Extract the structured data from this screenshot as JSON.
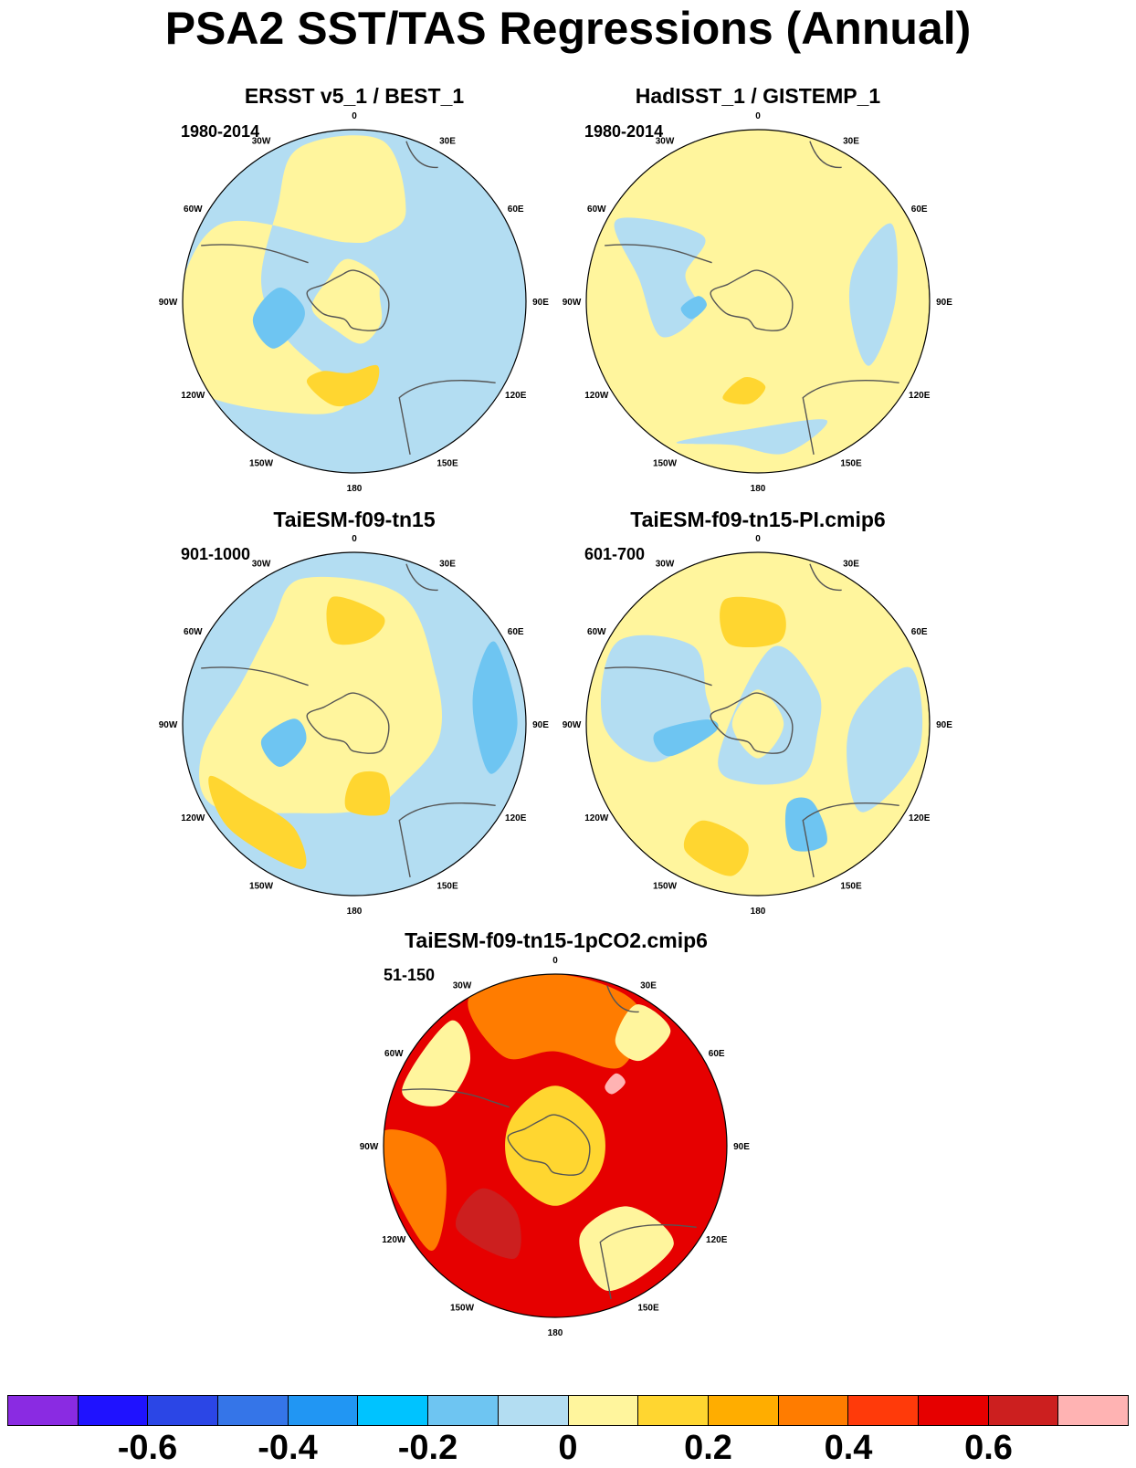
{
  "title": "PSA2 SST/TAS Regressions (Annual)",
  "panels": [
    {
      "title": "ERSST v5_1 / BEST_1",
      "period": "1980-2014",
      "scheme": "obs1"
    },
    {
      "title": "HadISST_1 / GISTEMP_1",
      "period": "1980-2014",
      "scheme": "obs2"
    },
    {
      "title": "TaiESM-f09-tn15",
      "period": "901-1000",
      "scheme": "model1"
    },
    {
      "title": "TaiESM-f09-tn15-PI.cmip6",
      "period": "601-700",
      "scheme": "model2"
    },
    {
      "title": "TaiESM-f09-tn15-1pCO2.cmip6",
      "period": "51-150",
      "scheme": "warm"
    }
  ],
  "longitude_labels": [
    "0",
    "30E",
    "60E",
    "90E",
    "120E",
    "150E",
    "180",
    "150W",
    "120W",
    "90W",
    "60W",
    "30W"
  ],
  "colorbar": {
    "colors": [
      "#8a2be2",
      "#1f12ff",
      "#2b46e6",
      "#3575e8",
      "#2196f3",
      "#00c3ff",
      "#6ec5f2",
      "#b3ddf2",
      "#fff59d",
      "#ffd630",
      "#ffad00",
      "#ff7c00",
      "#ff3a0a",
      "#e60000",
      "#cc1f1f",
      "#ffb3b3"
    ],
    "tick_labels": [
      "-0.6",
      "-0.4",
      "-0.2",
      "0",
      "0.2",
      "0.4",
      "0.6"
    ]
  },
  "palette": {
    "light_blue": "#b3ddf2",
    "mid_blue": "#6ec5f2",
    "deep_blue": "#00c3ff",
    "light_yellow": "#fff59d",
    "yellow": "#ffd630",
    "orange": "#ff7c00",
    "red": "#e60000",
    "dark_red": "#cc1f1f",
    "pink": "#ffb3b3"
  }
}
